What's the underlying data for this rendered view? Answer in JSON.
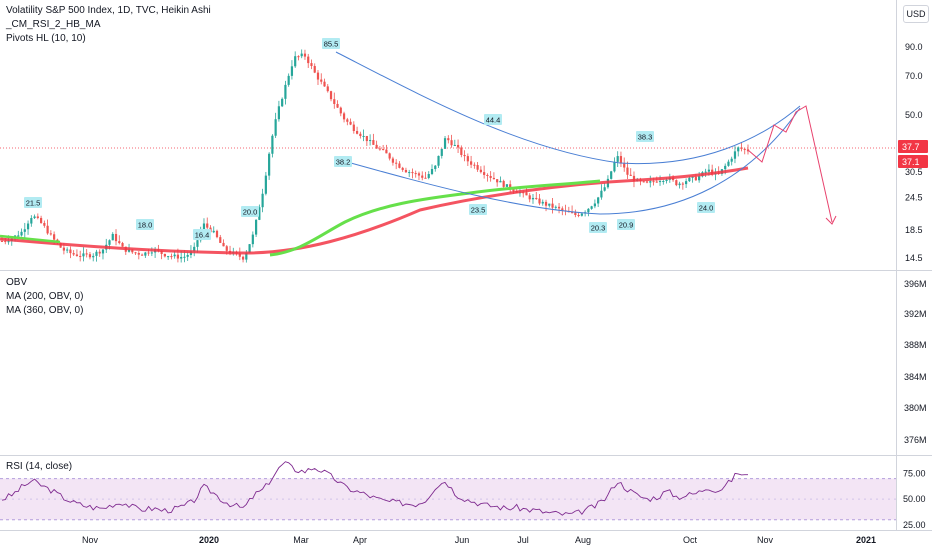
{
  "chart": {
    "price_legend": {
      "title": "Volatility S&P 500 Index, 1D, TVC, Heikin Ashi",
      "indicator_1": "_CM_RSI_2_HB_MA",
      "indicator_2": "Pivots HL (10, 10)"
    },
    "obv_legend": {
      "line_1": "OBV",
      "line_2": "MA (200, OBV, 0)",
      "line_3": "MA (360, OBV, 0)"
    },
    "rsi_legend": {
      "line_1": "RSI (14, close)"
    },
    "currency_button": "USD"
  },
  "chart_data": [
    {
      "type": "candlestick",
      "title": "Volatility S&P 500 Index, 1D, TVC, Heikin Ashi",
      "scale": "log",
      "y_ticks": [
        14.5,
        18.5,
        24.5,
        30.5,
        50.0,
        70.0,
        90.0
      ],
      "y_tick_labels": [
        "14.5",
        "18.5",
        "24.5",
        "30.5",
        "50.0",
        "70.0",
        "90.0"
      ],
      "x_tick_labels": [
        "Nov",
        "2020",
        "Mar",
        "Apr",
        "Jun",
        "Jul",
        "Aug",
        "Oct",
        "Nov",
        "2021"
      ],
      "current_price_labels": [
        {
          "value": 37.7,
          "text": "37.7",
          "color": "#f23645"
        },
        {
          "value": 37.1,
          "text": "37.1",
          "color": "#f23645"
        }
      ],
      "pivot_labels": [
        {
          "text": "21.5",
          "kind": "high"
        },
        {
          "text": "18.0",
          "kind": "high"
        },
        {
          "text": "16.4",
          "kind": "high"
        },
        {
          "text": "20.0",
          "kind": "high"
        },
        {
          "text": "85.5",
          "kind": "high"
        },
        {
          "text": "38.2",
          "kind": "low"
        },
        {
          "text": "44.4",
          "kind": "high"
        },
        {
          "text": "23.5",
          "kind": "low"
        },
        {
          "text": "20.3",
          "kind": "low"
        },
        {
          "text": "38.3",
          "kind": "high"
        },
        {
          "text": "20.9",
          "kind": "low"
        },
        {
          "text": "24.0",
          "kind": "low"
        }
      ],
      "series": [
        {
          "name": "",
          "role": "heikin-ashi candles",
          "up_color": "#26a69a",
          "down_color": "#ef5350",
          "close_path": [
            16.8,
            17.2,
            18.2,
            21.0,
            19.4,
            17.2,
            15.6,
            15.0,
            14.8,
            14.9,
            15.6,
            17.6,
            15.7,
            15.2,
            15.0,
            15.6,
            15.0,
            14.7,
            14.6,
            15.4,
            19.4,
            18.0,
            15.7,
            15.0,
            14.5,
            18.0,
            27.0,
            45.0,
            62.0,
            82.0,
            84.0,
            72.0,
            63.0,
            55.0,
            48.0,
            44.0,
            41.0,
            38.0,
            36.0,
            33.0,
            31.0,
            30.0,
            29.0,
            32.0,
            41.0,
            38.0,
            34.0,
            32.0,
            30.0,
            28.5,
            27.0,
            26.0,
            24.8,
            23.8,
            23.0,
            22.3,
            21.5,
            21.0,
            22.0,
            24.0,
            27.5,
            35.0,
            30.0,
            28.0,
            27.5,
            28.5,
            29.0,
            27.5,
            28.5,
            29.0,
            31.0,
            29.5,
            33.0,
            37.5,
            36.8
          ]
        },
        {
          "name": "",
          "role": "moving average (red)",
          "color": "#f23645"
        },
        {
          "name": "",
          "role": "moving average (green)",
          "color": "#66e04a"
        }
      ],
      "drawings": [
        {
          "type": "upper curved channel line",
          "color": "#4a7fd4"
        },
        {
          "type": "lower curved channel line",
          "color": "#4a7fd4"
        },
        {
          "type": "projection path",
          "color": "#e8436e",
          "path": [
            37.0,
            33.0,
            42.0,
            40.0,
            52.0,
            54.0,
            20.0
          ]
        }
      ],
      "xlabel": "",
      "ylabel": "",
      "grid": false
    },
    {
      "type": "line",
      "title": "OBV",
      "series": [
        {
          "name": "OBV"
        },
        {
          "name": "MA (200, OBV, 0)"
        },
        {
          "name": "MA (360, OBV, 0)"
        }
      ],
      "y_tick_labels": [
        "396M",
        "392M",
        "388M",
        "384M",
        "380M",
        "376M"
      ],
      "xlabel": "",
      "ylabel": ""
    },
    {
      "type": "line",
      "title": "RSI (14, close)",
      "series": [
        {
          "name": "RSI (14, close)",
          "color": "#7e2a8f",
          "values": [
            50,
            54,
            62,
            68,
            63,
            58,
            52,
            47,
            44,
            42,
            41,
            45,
            47,
            42,
            40,
            41,
            39,
            40,
            43,
            48,
            62,
            56,
            48,
            44,
            41,
            54,
            60,
            74,
            86,
            79,
            77,
            81,
            76,
            70,
            62,
            58,
            55,
            51,
            48,
            47,
            46,
            45,
            49,
            62,
            68,
            55,
            50,
            47,
            44,
            43,
            41,
            42,
            40,
            39,
            37,
            36,
            35,
            36,
            40,
            44,
            52,
            68,
            60,
            54,
            50,
            52,
            58,
            52,
            54,
            56,
            62,
            58,
            65,
            76,
            72
          ]
        }
      ],
      "bands": {
        "upper": 70,
        "lower": 30,
        "fill": "#f3e5f5"
      },
      "y_ticks": [
        25,
        50,
        75
      ],
      "y_tick_labels": [
        "25.00",
        "50.00",
        "75.00"
      ],
      "xlabel": "",
      "ylabel": ""
    }
  ]
}
